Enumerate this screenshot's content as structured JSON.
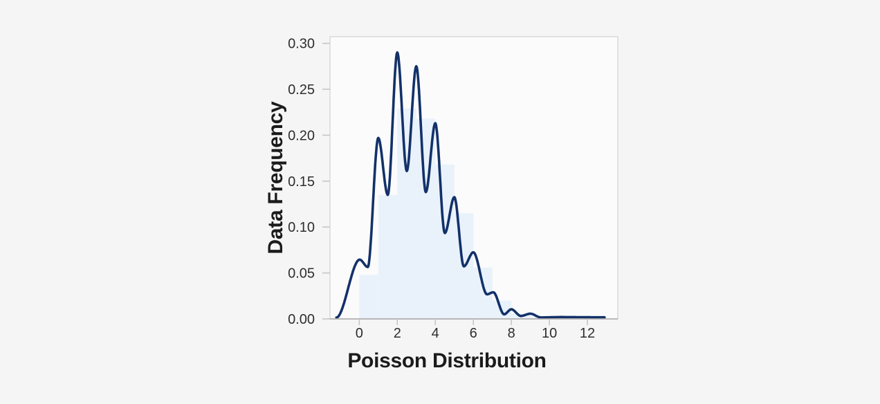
{
  "page": {
    "background_color": "#f5f5f5",
    "plot_background_color": "#fbfbfb",
    "plot_border_color": "#d9d9d9",
    "axis_line_color": "#a8a8a8",
    "tick_mark_color": "#c6c6c6",
    "tick_label_color": "#2d2d2d",
    "axis_title_color": "#1b1b1b"
  },
  "chart_data": {
    "type": "area",
    "subtype": "histogram-with-kde-curve",
    "title": "",
    "xlabel": "Poisson Distribution",
    "ylabel": "Data Frequency",
    "xlim": [
      -1.53,
      13.6
    ],
    "ylim": [
      0,
      0.3072
    ],
    "grid": false,
    "legend": null,
    "x_ticks": [
      0,
      2,
      4,
      6,
      8,
      10,
      12
    ],
    "y_ticks": [
      {
        "value": 0.0,
        "label": "0.00"
      },
      {
        "value": 0.05,
        "label": "0.05"
      },
      {
        "value": 0.1,
        "label": "0.10"
      },
      {
        "value": 0.15,
        "label": "0.15"
      },
      {
        "value": 0.2,
        "label": "0.20"
      },
      {
        "value": 0.25,
        "label": "0.25"
      },
      {
        "value": 0.3,
        "label": "0.30"
      }
    ],
    "series": [
      {
        "name": "histogram",
        "type": "bar",
        "fill_color": "#e9f2fb",
        "bin_width": 1,
        "bins": [
          0,
          1,
          2,
          3,
          4,
          5,
          6,
          7,
          8,
          9
        ],
        "densities": [
          0.048,
          0.135,
          0.229,
          0.218,
          0.168,
          0.115,
          0.056,
          0.02,
          0.006,
          0.002
        ]
      },
      {
        "name": "kde",
        "type": "line",
        "color": "#133169",
        "stroke_width": 3.6,
        "peak_and_valley_points": [
          [
            -1.2,
            0.0015
          ],
          [
            0.02,
            0.0645
          ],
          [
            0.45,
            0.0565
          ],
          [
            1,
            0.197
          ],
          [
            1.5,
            0.135
          ],
          [
            2,
            0.29
          ],
          [
            2.5,
            0.161
          ],
          [
            3,
            0.275
          ],
          [
            3.5,
            0.138
          ],
          [
            4,
            0.213
          ],
          [
            4.5,
            0.0935
          ],
          [
            5,
            0.1325
          ],
          [
            5.5,
            0.0572
          ],
          [
            6,
            0.0725
          ],
          [
            6.72,
            0.0268
          ],
          [
            7.05,
            0.029
          ],
          [
            7.62,
            0.005
          ],
          [
            8,
            0.0105
          ],
          [
            8.5,
            0.0032
          ],
          [
            9,
            0.0057
          ],
          [
            9.55,
            0.0016
          ],
          [
            10.6,
            0.002
          ],
          [
            12.9,
            0.0017
          ]
        ]
      }
    ]
  }
}
